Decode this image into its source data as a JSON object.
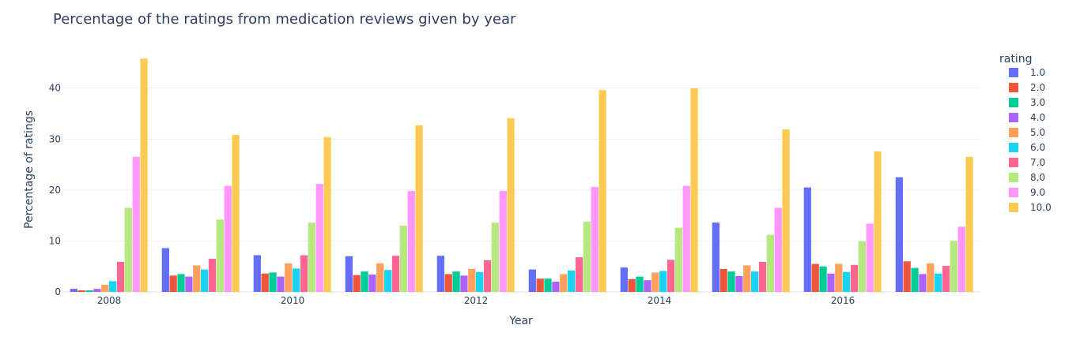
{
  "chart_data": {
    "type": "bar",
    "title": "Percentage of the ratings from medication reviews given by year",
    "xlabel": "Year",
    "ylabel": "Percentage of ratings",
    "ylim": [
      0,
      48
    ],
    "y_ticks": [
      0,
      10,
      20,
      30,
      40
    ],
    "x_ticks": [
      2008,
      2010,
      2012,
      2014,
      2016
    ],
    "categories": [
      2008,
      2009,
      2010,
      2011,
      2012,
      2013,
      2014,
      2015,
      2016,
      2017
    ],
    "grid": true,
    "legend": {
      "title": "rating",
      "position": "right"
    },
    "series": [
      {
        "name": "1.0",
        "color": "#636efa",
        "values": [
          0.6,
          8.6,
          7.2,
          7.0,
          7.1,
          4.4,
          4.8,
          13.6,
          20.5,
          22.5
        ]
      },
      {
        "name": "2.0",
        "color": "#ef553b",
        "values": [
          0.3,
          3.2,
          3.6,
          3.3,
          3.5,
          2.6,
          2.5,
          4.5,
          5.5,
          6.0
        ]
      },
      {
        "name": "3.0",
        "color": "#00cc96",
        "values": [
          0.3,
          3.5,
          3.8,
          4.0,
          4.0,
          2.6,
          3.0,
          4.0,
          5.0,
          4.7
        ]
      },
      {
        "name": "4.0",
        "color": "#ab63fa",
        "values": [
          0.6,
          3.0,
          3.0,
          3.4,
          3.2,
          2.0,
          2.3,
          3.1,
          3.6,
          3.5
        ]
      },
      {
        "name": "5.0",
        "color": "#ffa15a",
        "values": [
          1.4,
          5.2,
          5.6,
          5.6,
          4.5,
          3.5,
          3.8,
          5.2,
          5.5,
          5.6
        ]
      },
      {
        "name": "6.0",
        "color": "#19d3f3",
        "values": [
          2.1,
          4.4,
          4.6,
          4.3,
          3.9,
          4.2,
          4.1,
          4.0,
          3.9,
          3.6
        ]
      },
      {
        "name": "7.0",
        "color": "#ff6692",
        "values": [
          5.9,
          6.5,
          7.2,
          7.1,
          6.2,
          6.8,
          6.3,
          5.9,
          5.3,
          5.1
        ]
      },
      {
        "name": "8.0",
        "color": "#b6e880",
        "values": [
          16.5,
          14.2,
          13.6,
          13.0,
          13.6,
          13.8,
          12.6,
          11.2,
          9.9,
          10.0
        ]
      },
      {
        "name": "9.0",
        "color": "#ff97ff",
        "values": [
          26.5,
          20.8,
          21.2,
          19.8,
          19.8,
          20.6,
          20.8,
          16.5,
          13.4,
          12.8
        ]
      },
      {
        "name": "10.0",
        "color": "#fecb52",
        "values": [
          45.8,
          30.8,
          30.4,
          32.7,
          34.1,
          39.6,
          40.0,
          31.9,
          27.6,
          26.5
        ]
      }
    ]
  }
}
